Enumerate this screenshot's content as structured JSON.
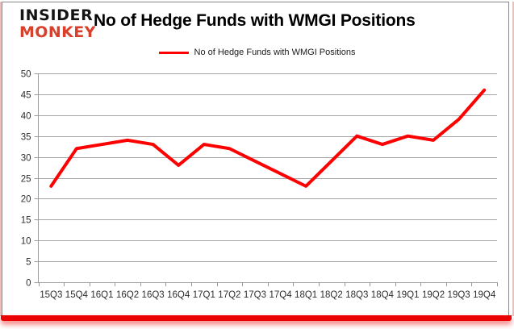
{
  "logo": {
    "line1": "INSIDER",
    "line2": "MONKEY"
  },
  "header": {
    "title": "No of Hedge Funds with WMGI Positions"
  },
  "legend": {
    "label": "No of Hedge Funds with WMGI Positions"
  },
  "chart_data": {
    "type": "line",
    "title": "No of Hedge Funds with WMGI Positions",
    "categories": [
      "15Q3",
      "15Q4",
      "16Q1",
      "16Q2",
      "16Q3",
      "16Q4",
      "17Q1",
      "17Q2",
      "17Q3",
      "17Q4",
      "18Q1",
      "18Q2",
      "18Q3",
      "18Q4",
      "19Q1",
      "19Q2",
      "19Q3",
      "19Q4"
    ],
    "series": [
      {
        "name": "No of Hedge Funds with WMGI Positions",
        "values": [
          23,
          32,
          33,
          34,
          33,
          28,
          33,
          32,
          29,
          26,
          23,
          29,
          35,
          33,
          35,
          34,
          39,
          46
        ]
      }
    ],
    "xlabel": "",
    "ylabel": "",
    "ylim": [
      0,
      50
    ],
    "ytick_step": 5,
    "grid": true,
    "legend_position": "top",
    "line_color": "#fe0000",
    "grid_color": "#a3a3a3",
    "axis_color": "#9a9a9a",
    "tick_label_color": "#2e2e2e"
  },
  "colors": {
    "logo_black": "#141414",
    "logo_red": "#d8402c",
    "frame_border": "#878787",
    "bottom_bar_red": "#ea0202",
    "side_glow_pink": "#f3bcb8"
  }
}
